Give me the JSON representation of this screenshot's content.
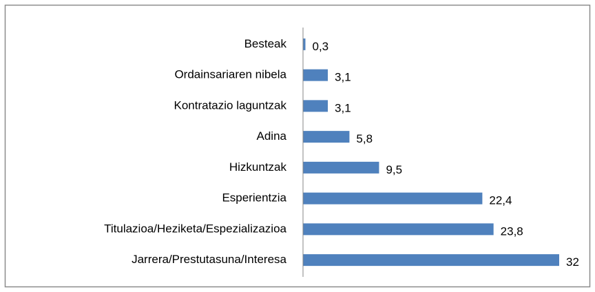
{
  "chart_data": {
    "type": "hbar",
    "categories": [
      "Besteak",
      "Ordainsariaren nibela",
      "Kontratazio laguntzak",
      "Adina",
      "Hizkuntzak",
      "Esperientzia",
      "Titulazioa/Heziketa/Espezializazioa",
      "Jarrera/Prestutasuna/Interesa"
    ],
    "values": [
      0.3,
      3.1,
      3.1,
      5.8,
      9.5,
      22.4,
      23.8,
      32
    ],
    "value_labels": [
      "0,3",
      "3,1",
      "3,1",
      "5,8",
      "9,5",
      "22,4",
      "23,8",
      "32"
    ],
    "color": "#4f81bd",
    "xlim": [
      0,
      32
    ]
  }
}
